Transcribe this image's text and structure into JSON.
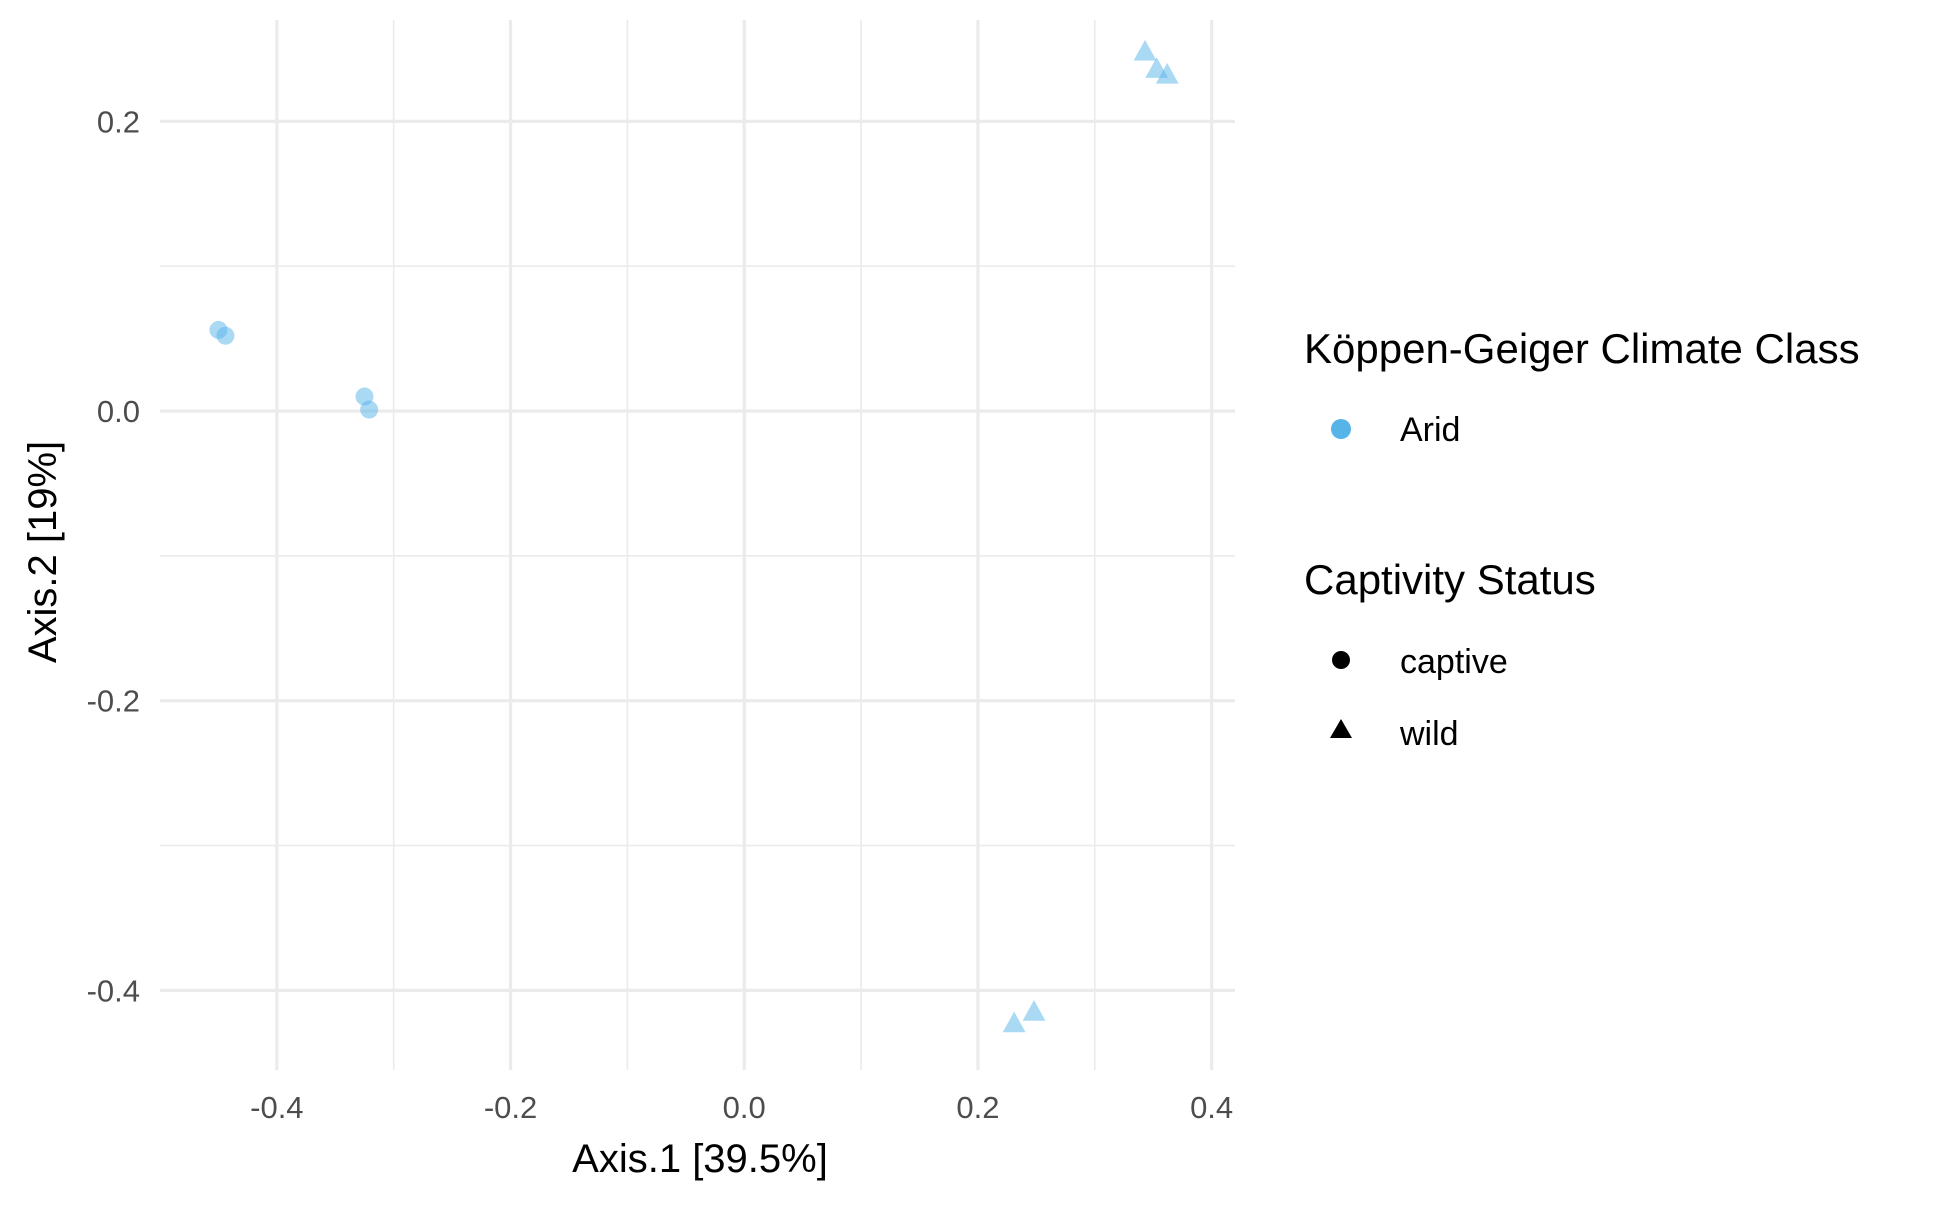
{
  "chart_data": {
    "type": "scatter",
    "title": "",
    "xlabel": "Axis.1   [39.5%]",
    "ylabel": "Axis.2   [19%]",
    "xlim": [
      -0.5,
      0.42
    ],
    "ylim": [
      -0.455,
      0.27
    ],
    "x_ticks": [
      -0.4,
      -0.2,
      0.0,
      0.2,
      0.4
    ],
    "x_tick_labels": [
      "-0.4",
      "-0.2",
      "0.0",
      "0.2",
      "0.4"
    ],
    "y_ticks": [
      0.2,
      0.0,
      -0.2,
      -0.4
    ],
    "y_tick_labels": [
      "0.2",
      "0.0",
      "-0.2",
      "-0.4"
    ],
    "grid": true,
    "legend_position": "right",
    "point_color": "#56b4e9",
    "point_opacity": 0.5,
    "series": [
      {
        "name": "captive",
        "color_group": "Arid",
        "shape": "circle",
        "points": [
          {
            "x": -0.45,
            "y": 0.056
          },
          {
            "x": -0.444,
            "y": 0.052
          },
          {
            "x": -0.325,
            "y": 0.01
          },
          {
            "x": -0.321,
            "y": 0.001
          }
        ]
      },
      {
        "name": "wild",
        "color_group": "Arid",
        "shape": "triangle",
        "points": [
          {
            "x": 0.343,
            "y": 0.248
          },
          {
            "x": 0.353,
            "y": 0.236
          },
          {
            "x": 0.362,
            "y": 0.232
          },
          {
            "x": 0.231,
            "y": -0.423
          },
          {
            "x": 0.248,
            "y": -0.415
          }
        ]
      }
    ],
    "legends": [
      {
        "title": "Köppen-Geiger Climate Class",
        "items": [
          {
            "label": "Arid",
            "shape": "circle",
            "color": "#56b4e9"
          }
        ]
      },
      {
        "title": "Captivity Status",
        "items": [
          {
            "label": "captive",
            "shape": "circle",
            "color": "#000000"
          },
          {
            "label": "wild",
            "shape": "triangle",
            "color": "#000000"
          }
        ]
      }
    ]
  }
}
